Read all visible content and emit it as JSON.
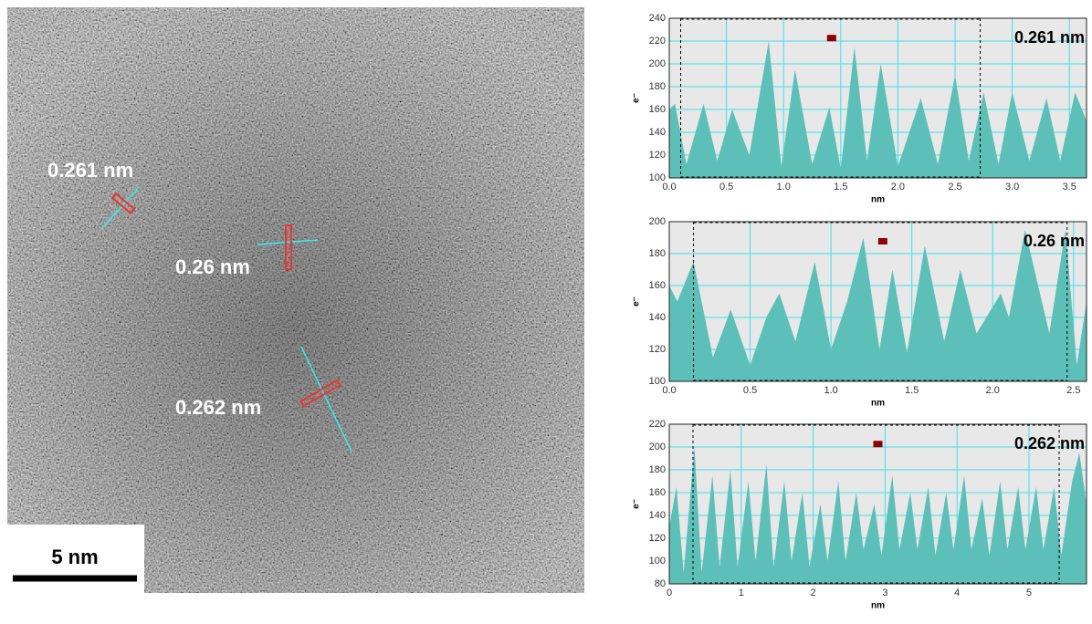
{
  "image": {
    "labels": [
      "0.261 nm",
      "0.26 nm",
      "0.262 nm"
    ],
    "scale_bar": "5 nm"
  },
  "chart_data": [
    {
      "type": "area",
      "annotation": "0.261 nm",
      "xlabel": "nm",
      "ylabel": "e⁻",
      "color": "#5cc0b8",
      "grid": true,
      "xlim": [
        0,
        3.65
      ],
      "ylim": [
        100,
        240
      ],
      "xticks": [
        {
          "value": 0,
          "label": "0.0"
        },
        0.5,
        {
          "value": 1,
          "label": "1.0"
        },
        1.5,
        {
          "value": 2,
          "label": "2.0"
        },
        2.5,
        {
          "value": 3,
          "label": "3.0"
        },
        3.5
      ],
      "yticks": [
        100,
        120,
        140,
        160,
        180,
        200,
        220,
        240
      ],
      "cursors": [
        0.1,
        2.72
      ],
      "marker": [
        1.42,
        223
      ],
      "x": [
        0,
        0.05,
        0.15,
        0.3,
        0.42,
        0.55,
        0.7,
        0.87,
        0.98,
        1.1,
        1.25,
        1.4,
        1.5,
        1.62,
        1.73,
        1.85,
        2.0,
        2.2,
        2.35,
        2.5,
        2.62,
        2.75,
        2.88,
        3.0,
        3.15,
        3.3,
        3.42,
        3.55,
        3.65
      ],
      "values": [
        160,
        165,
        112,
        165,
        115,
        160,
        120,
        220,
        110,
        195,
        112,
        162,
        108,
        215,
        115,
        200,
        110,
        170,
        112,
        190,
        115,
        175,
        112,
        175,
        115,
        170,
        115,
        175,
        150
      ]
    },
    {
      "type": "area",
      "annotation": "0.26 nm",
      "xlabel": "nm",
      "ylabel": "e⁻",
      "color": "#5cc0b8",
      "grid": true,
      "xlim": [
        0,
        2.58
      ],
      "ylim": [
        100,
        200
      ],
      "xticks": [
        {
          "value": 0,
          "label": "0.0"
        },
        0.5,
        {
          "value": 1,
          "label": "1.0"
        },
        1.5,
        {
          "value": 2,
          "label": "2.0"
        },
        2.5
      ],
      "yticks": [
        100,
        120,
        140,
        160,
        180,
        200
      ],
      "cursors": [
        0.15,
        2.46
      ],
      "marker": [
        1.32,
        188
      ],
      "x": [
        0,
        0.05,
        0.15,
        0.27,
        0.38,
        0.5,
        0.6,
        0.68,
        0.78,
        0.9,
        1.0,
        1.1,
        1.2,
        1.3,
        1.38,
        1.47,
        1.58,
        1.7,
        1.8,
        1.9,
        2.05,
        2.1,
        2.2,
        2.35,
        2.45,
        2.52,
        2.58
      ],
      "values": [
        160,
        150,
        175,
        115,
        145,
        110,
        140,
        155,
        125,
        175,
        120,
        150,
        190,
        120,
        170,
        118,
        185,
        125,
        170,
        130,
        155,
        140,
        195,
        130,
        195,
        110,
        150
      ]
    },
    {
      "type": "area",
      "annotation": "0.262 nm",
      "xlabel": "nm",
      "ylabel": "e⁻",
      "color": "#5cc0b8",
      "grid": true,
      "xlim": [
        0,
        5.8
      ],
      "ylim": [
        80,
        220
      ],
      "xticks": [
        0,
        1,
        2,
        3,
        4,
        5
      ],
      "yticks": [
        80,
        100,
        120,
        140,
        160,
        180,
        200,
        220
      ],
      "cursors": [
        0.33,
        5.42
      ],
      "marker": [
        2.9,
        203
      ],
      "x": [
        0,
        0.1,
        0.2,
        0.35,
        0.45,
        0.6,
        0.7,
        0.85,
        0.95,
        1.1,
        1.2,
        1.35,
        1.45,
        1.6,
        1.7,
        1.85,
        1.95,
        2.1,
        2.2,
        2.35,
        2.45,
        2.6,
        2.7,
        2.85,
        2.95,
        3.1,
        3.2,
        3.35,
        3.45,
        3.6,
        3.7,
        3.85,
        3.95,
        4.1,
        4.2,
        4.35,
        4.45,
        4.6,
        4.7,
        4.85,
        4.95,
        5.1,
        5.2,
        5.35,
        5.45,
        5.6,
        5.7,
        5.8
      ],
      "values": [
        130,
        165,
        90,
        200,
        90,
        175,
        95,
        180,
        95,
        170,
        100,
        185,
        95,
        170,
        100,
        160,
        95,
        150,
        100,
        170,
        100,
        160,
        110,
        150,
        105,
        175,
        110,
        160,
        110,
        165,
        105,
        160,
        110,
        175,
        110,
        155,
        105,
        170,
        110,
        165,
        110,
        165,
        110,
        165,
        105,
        170,
        195,
        150
      ]
    }
  ]
}
